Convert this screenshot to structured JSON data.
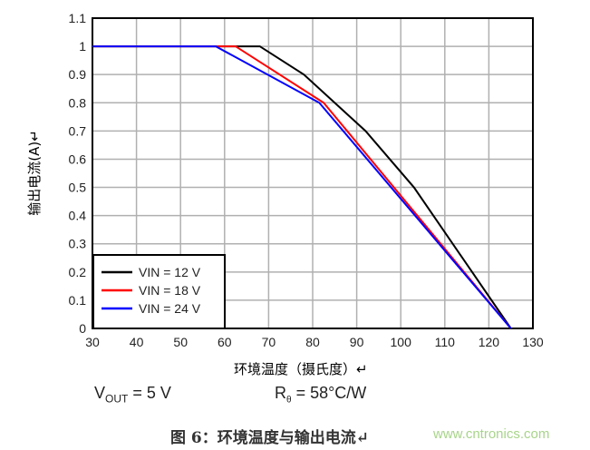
{
  "chart_data": {
    "type": "line",
    "xlabel": "环境温度（摄氏度）↵",
    "ylabel": "输出电流(A)↵",
    "xlim": [
      30,
      130
    ],
    "ylim": [
      0,
      1.1
    ],
    "xticks": [
      "30",
      "40",
      "50",
      "60",
      "70",
      "80",
      "90",
      "100",
      "110",
      "120",
      "130"
    ],
    "yticks": [
      "0",
      "0.1",
      "0.2",
      "0.3",
      "0.4",
      "0.5",
      "0.6",
      "0.7",
      "0.8",
      "0.9",
      "1",
      "1.1"
    ],
    "grid": true,
    "legend_position": "bottom-left",
    "series": [
      {
        "name": "VIN = 12 V",
        "color": "#000000",
        "points": [
          [
            30,
            1
          ],
          [
            68,
            1
          ],
          [
            78,
            0.9
          ],
          [
            92,
            0.7
          ],
          [
            103,
            0.5
          ],
          [
            125,
            0
          ]
        ]
      },
      {
        "name": "VIN = 18 V",
        "color": "#ff0000",
        "points": [
          [
            30,
            1
          ],
          [
            62.5,
            1
          ],
          [
            82.5,
            0.8
          ],
          [
            125,
            0
          ]
        ]
      },
      {
        "name": "VIN = 24 V",
        "color": "#0000ff",
        "points": [
          [
            30,
            1
          ],
          [
            58,
            1
          ],
          [
            81.5,
            0.8
          ],
          [
            125,
            0
          ]
        ]
      }
    ]
  },
  "notes": {
    "vout_main": "V",
    "vout_sub": "OUT",
    "vout_val": " = 5 V",
    "r_main": "R",
    "r_sub": "θ",
    "r_val": " = 58°C/W"
  },
  "caption": "图 6：环境温度与输出电流↵",
  "watermark": "www.cntronics.com"
}
